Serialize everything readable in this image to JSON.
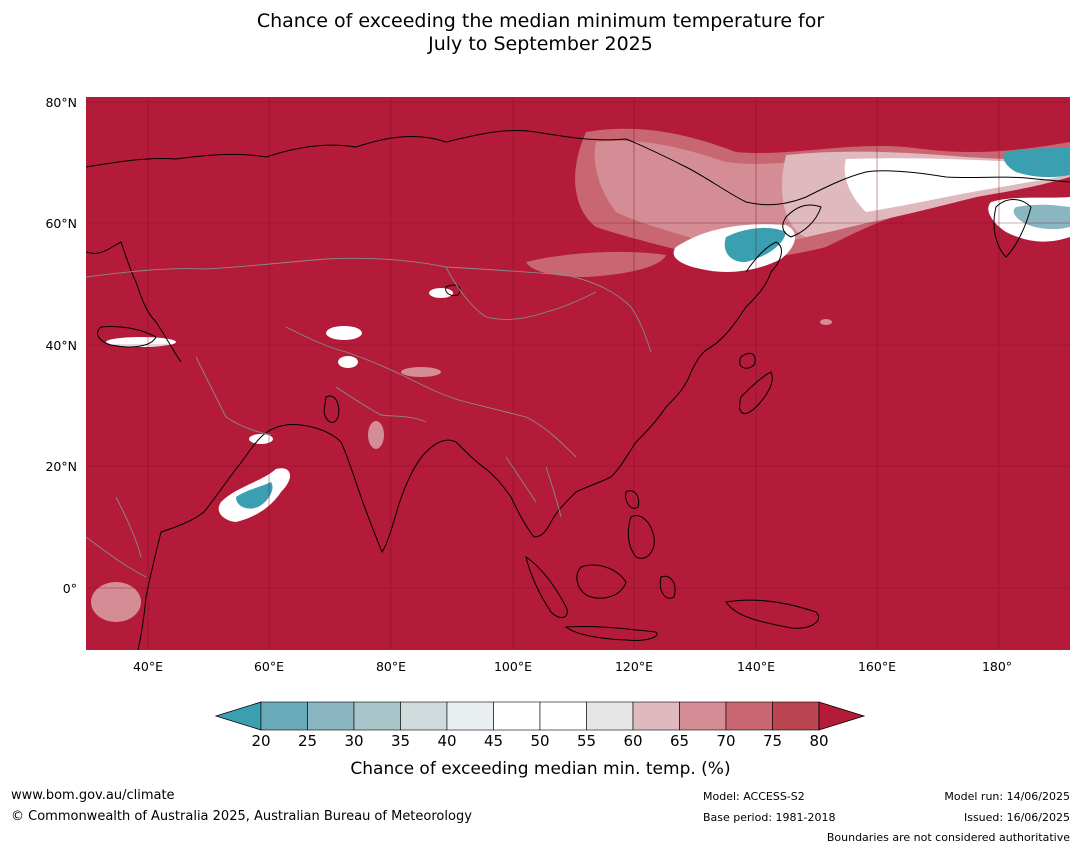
{
  "title": {
    "line1": "Chance of exceeding the median minimum temperature for",
    "line2": "July to September 2025"
  },
  "map": {
    "region": "Asia",
    "background_color": "#b31b39",
    "latitude_labels": [
      "80°N",
      "60°N",
      "40°N",
      "20°N",
      "0°"
    ],
    "longitude_labels": [
      "40°E",
      "60°E",
      "80°E",
      "100°E",
      "120°E",
      "140°E",
      "160°E",
      "180°"
    ]
  },
  "colorbar": {
    "ticks": [
      "20",
      "25",
      "30",
      "35",
      "40",
      "45",
      "50",
      "55",
      "60",
      "65",
      "70",
      "75",
      "80"
    ],
    "colors": [
      "#3a9fb1",
      "#6aaab8",
      "#89b6c0",
      "#a9c6ca",
      "#d0dadc",
      "#e9eff0",
      "#ffffff",
      "#ffffff",
      "#e6e6e6",
      "#dfb9be",
      "#d48d95",
      "#c86771",
      "#bb4451",
      "#b31b39"
    ],
    "label": "Chance of exceeding median min. temp. (%)"
  },
  "footer": {
    "website": "www.bom.gov.au/climate",
    "copyright": "© Commonwealth of Australia 2025, Australian Bureau of Meteorology",
    "model": "Model: ACCESS-S2",
    "base_period": "Base period: 1981-2018",
    "model_run": "Model run: 14/06/2025",
    "issued": "Issued: 16/06/2025",
    "boundaries_note": "Boundaries are not considered authoritative"
  }
}
